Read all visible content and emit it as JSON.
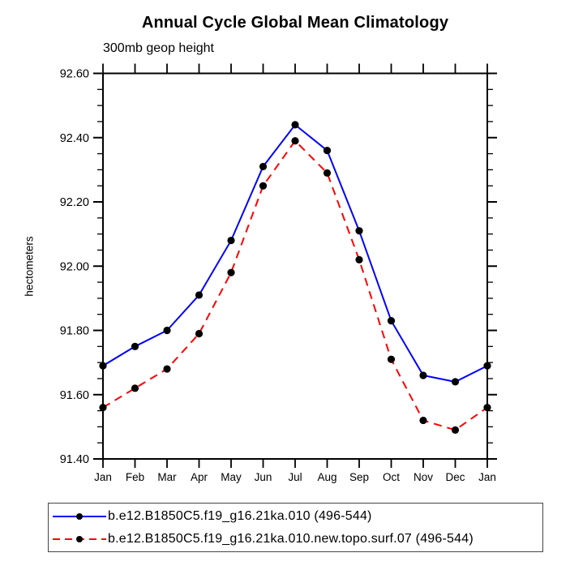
{
  "page": {
    "background": "#ffffff",
    "text_color": "#000000"
  },
  "chart_data": {
    "type": "line",
    "title": "Annual Cycle Global Mean Climatology",
    "subtitle": "300mb geop height",
    "ylabel": "hectometers",
    "xlabel": "",
    "categories": [
      "Jan",
      "Feb",
      "Mar",
      "Apr",
      "May",
      "Jun",
      "Jul",
      "Aug",
      "Sep",
      "Oct",
      "Nov",
      "Dec",
      "Jan"
    ],
    "ylim": [
      91.4,
      92.6
    ],
    "ytick_major": 0.2,
    "ytick_minor": 0.05,
    "ytick_format_decimals": 2,
    "grid": false,
    "legend_position": "bottom-left-box",
    "axis_color": "#000000",
    "marker": "filled-circle",
    "marker_color": "#000000",
    "series": [
      {
        "name": "b.e12.B1850C5.f19_g16.21ka.010 (496-544)",
        "color": "#0000ff",
        "style": "solid",
        "values": [
          91.69,
          91.75,
          91.8,
          91.91,
          92.08,
          92.31,
          92.44,
          92.36,
          92.11,
          91.83,
          91.66,
          91.64,
          91.69
        ]
      },
      {
        "name": "b.e12.B1850C5.f19_g16.21ka.010.new.topo.surf.07 (496-544)",
        "color": "#ff0000",
        "style": "dashed",
        "values": [
          91.56,
          91.62,
          91.68,
          91.79,
          91.98,
          92.25,
          92.39,
          92.29,
          92.02,
          91.71,
          91.52,
          91.49,
          91.56
        ]
      }
    ]
  }
}
